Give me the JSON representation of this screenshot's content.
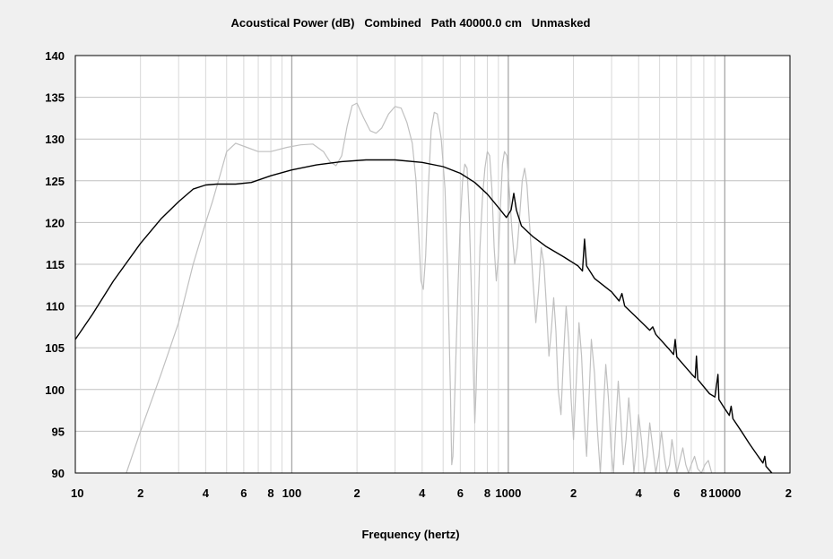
{
  "chart_data": {
    "type": "line",
    "title": "Acoustical Power (dB)   Combined   Path 40000.0 cm   Unmasked",
    "xlabel": "Frequency (hertz)",
    "ylabel": "",
    "x_scale": "log",
    "xlim": [
      10,
      20000
    ],
    "ylim": [
      90,
      140
    ],
    "grid": true,
    "y_ticks": [
      140,
      135,
      130,
      125,
      120,
      115,
      110,
      105,
      100,
      95,
      90
    ],
    "x_tick_labels": [
      {
        "x": 10,
        "label": "10"
      },
      {
        "x": 20,
        "label": "2"
      },
      {
        "x": 40,
        "label": "4"
      },
      {
        "x": 60,
        "label": "6"
      },
      {
        "x": 80,
        "label": "8"
      },
      {
        "x": 100,
        "label": "100"
      },
      {
        "x": 200,
        "label": "2"
      },
      {
        "x": 400,
        "label": "4"
      },
      {
        "x": 600,
        "label": "6"
      },
      {
        "x": 800,
        "label": "8"
      },
      {
        "x": 1000,
        "label": "1000"
      },
      {
        "x": 2000,
        "label": "2"
      },
      {
        "x": 4000,
        "label": "4"
      },
      {
        "x": 6000,
        "label": "6"
      },
      {
        "x": 8000,
        "label": "8"
      },
      {
        "x": 10000,
        "label": "10000"
      },
      {
        "x": 20000,
        "label": "2"
      }
    ],
    "series": [
      {
        "color": "#000000",
        "points": [
          [
            10,
            106
          ],
          [
            12,
            109
          ],
          [
            15,
            113
          ],
          [
            20,
            117.5
          ],
          [
            25,
            120.5
          ],
          [
            30,
            122.5
          ],
          [
            35,
            124
          ],
          [
            40,
            124.5
          ],
          [
            45,
            124.6
          ],
          [
            55,
            124.6
          ],
          [
            65,
            124.8
          ],
          [
            80,
            125.6
          ],
          [
            100,
            126.3
          ],
          [
            130,
            126.9
          ],
          [
            170,
            127.3
          ],
          [
            220,
            127.5
          ],
          [
            300,
            127.5
          ],
          [
            400,
            127.2
          ],
          [
            500,
            126.7
          ],
          [
            600,
            125.9
          ],
          [
            700,
            124.8
          ],
          [
            800,
            123.4
          ],
          [
            900,
            121.8
          ],
          [
            980,
            120.6
          ],
          [
            1030,
            121.5
          ],
          [
            1060,
            123.5
          ],
          [
            1090,
            121.5
          ],
          [
            1150,
            119.6
          ],
          [
            1300,
            118.3
          ],
          [
            1500,
            117.1
          ],
          [
            1800,
            115.9
          ],
          [
            2100,
            114.8
          ],
          [
            2200,
            114.2
          ],
          [
            2250,
            118
          ],
          [
            2300,
            114.8
          ],
          [
            2500,
            113.3
          ],
          [
            3000,
            111.7
          ],
          [
            3250,
            110.6
          ],
          [
            3350,
            111.5
          ],
          [
            3450,
            110.0
          ],
          [
            4000,
            108.4
          ],
          [
            4500,
            107.1
          ],
          [
            4650,
            107.5
          ],
          [
            4800,
            106.6
          ],
          [
            5500,
            104.9
          ],
          [
            5800,
            104.2
          ],
          [
            5900,
            106
          ],
          [
            6000,
            103.9
          ],
          [
            7000,
            101.9
          ],
          [
            7300,
            101.4
          ],
          [
            7400,
            104
          ],
          [
            7500,
            101.2
          ],
          [
            8500,
            99.5
          ],
          [
            9000,
            99.1
          ],
          [
            9300,
            101.8
          ],
          [
            9400,
            98.8
          ],
          [
            10000,
            97.7
          ],
          [
            10500,
            96.9
          ],
          [
            10700,
            98
          ],
          [
            10900,
            96.5
          ],
          [
            12000,
            94.9
          ],
          [
            13000,
            93.5
          ],
          [
            14000,
            92.3
          ],
          [
            15000,
            91.2
          ],
          [
            15300,
            92
          ],
          [
            15500,
            90.8
          ],
          [
            16500,
            90
          ]
        ]
      },
      {
        "color": "#c0c0c0",
        "points": [
          [
            17.2,
            90
          ],
          [
            20,
            95
          ],
          [
            25,
            102
          ],
          [
            30,
            108
          ],
          [
            35,
            115
          ],
          [
            40,
            120
          ],
          [
            43,
            122.5
          ],
          [
            47,
            126
          ],
          [
            50,
            128.5
          ],
          [
            55,
            129.5
          ],
          [
            62,
            129
          ],
          [
            70,
            128.5
          ],
          [
            80,
            128.5
          ],
          [
            95,
            129
          ],
          [
            110,
            129.3
          ],
          [
            125,
            129.4
          ],
          [
            140,
            128.5
          ],
          [
            150,
            127.3
          ],
          [
            160,
            126.8
          ],
          [
            170,
            128
          ],
          [
            180,
            131.5
          ],
          [
            190,
            134
          ],
          [
            200,
            134.3
          ],
          [
            215,
            132.5
          ],
          [
            230,
            131
          ],
          [
            245,
            130.7
          ],
          [
            260,
            131.3
          ],
          [
            280,
            133
          ],
          [
            300,
            133.9
          ],
          [
            320,
            133.7
          ],
          [
            340,
            132
          ],
          [
            360,
            129.5
          ],
          [
            375,
            125
          ],
          [
            385,
            119
          ],
          [
            395,
            113
          ],
          [
            405,
            112
          ],
          [
            415,
            116
          ],
          [
            425,
            123
          ],
          [
            440,
            131
          ],
          [
            455,
            133.2
          ],
          [
            470,
            133
          ],
          [
            490,
            130
          ],
          [
            510,
            124
          ],
          [
            525,
            114
          ],
          [
            540,
            100
          ],
          [
            548,
            91
          ],
          [
            555,
            92
          ],
          [
            570,
            102
          ],
          [
            585,
            112
          ],
          [
            600,
            120
          ],
          [
            615,
            125
          ],
          [
            630,
            127
          ],
          [
            645,
            126.5
          ],
          [
            660,
            121
          ],
          [
            675,
            112
          ],
          [
            690,
            102
          ],
          [
            700,
            96
          ],
          [
            710,
            100
          ],
          [
            725,
            109
          ],
          [
            740,
            117
          ],
          [
            760,
            123
          ],
          [
            780,
            126.5
          ],
          [
            800,
            128.5
          ],
          [
            820,
            128
          ],
          [
            840,
            124
          ],
          [
            860,
            117
          ],
          [
            880,
            113
          ],
          [
            900,
            116
          ],
          [
            920,
            122
          ],
          [
            940,
            127
          ],
          [
            960,
            128.5
          ],
          [
            985,
            128
          ],
          [
            1010,
            124
          ],
          [
            1040,
            119
          ],
          [
            1070,
            115
          ],
          [
            1100,
            117
          ],
          [
            1130,
            121
          ],
          [
            1160,
            125
          ],
          [
            1190,
            126.5
          ],
          [
            1220,
            124.5
          ],
          [
            1260,
            119
          ],
          [
            1300,
            113
          ],
          [
            1340,
            108
          ],
          [
            1380,
            112
          ],
          [
            1420,
            117
          ],
          [
            1460,
            115
          ],
          [
            1500,
            110
          ],
          [
            1540,
            104
          ],
          [
            1580,
            107
          ],
          [
            1620,
            111
          ],
          [
            1660,
            107
          ],
          [
            1700,
            100
          ],
          [
            1750,
            97
          ],
          [
            1800,
            104
          ],
          [
            1850,
            110
          ],
          [
            1900,
            106
          ],
          [
            1950,
            99
          ],
          [
            2000,
            94
          ],
          [
            2060,
            101
          ],
          [
            2120,
            108
          ],
          [
            2180,
            104
          ],
          [
            2240,
            97
          ],
          [
            2300,
            92
          ],
          [
            2360,
            99
          ],
          [
            2420,
            106
          ],
          [
            2500,
            102
          ],
          [
            2580,
            95
          ],
          [
            2660,
            90
          ],
          [
            2740,
            97
          ],
          [
            2820,
            103
          ],
          [
            2900,
            99
          ],
          [
            2980,
            93
          ],
          [
            3060,
            90
          ],
          [
            3140,
            96
          ],
          [
            3220,
            101
          ],
          [
            3300,
            97
          ],
          [
            3400,
            91
          ],
          [
            3500,
            94
          ],
          [
            3600,
            99
          ],
          [
            3700,
            95
          ],
          [
            3800,
            90
          ],
          [
            3900,
            93
          ],
          [
            4000,
            97
          ],
          [
            4120,
            94
          ],
          [
            4250,
            90
          ],
          [
            4380,
            92
          ],
          [
            4500,
            96
          ],
          [
            4650,
            93
          ],
          [
            4800,
            90
          ],
          [
            4950,
            92
          ],
          [
            5100,
            95
          ],
          [
            5250,
            92
          ],
          [
            5400,
            90
          ],
          [
            5550,
            91
          ],
          [
            5700,
            94
          ],
          [
            5850,
            92
          ],
          [
            6000,
            90
          ],
          [
            6200,
            91.5
          ],
          [
            6400,
            93
          ],
          [
            6600,
            91
          ],
          [
            6800,
            90
          ],
          [
            7000,
            91
          ],
          [
            7250,
            92
          ],
          [
            7500,
            90.5
          ],
          [
            7800,
            90
          ],
          [
            8100,
            91
          ],
          [
            8400,
            91.5
          ],
          [
            8700,
            90
          ]
        ]
      }
    ]
  }
}
